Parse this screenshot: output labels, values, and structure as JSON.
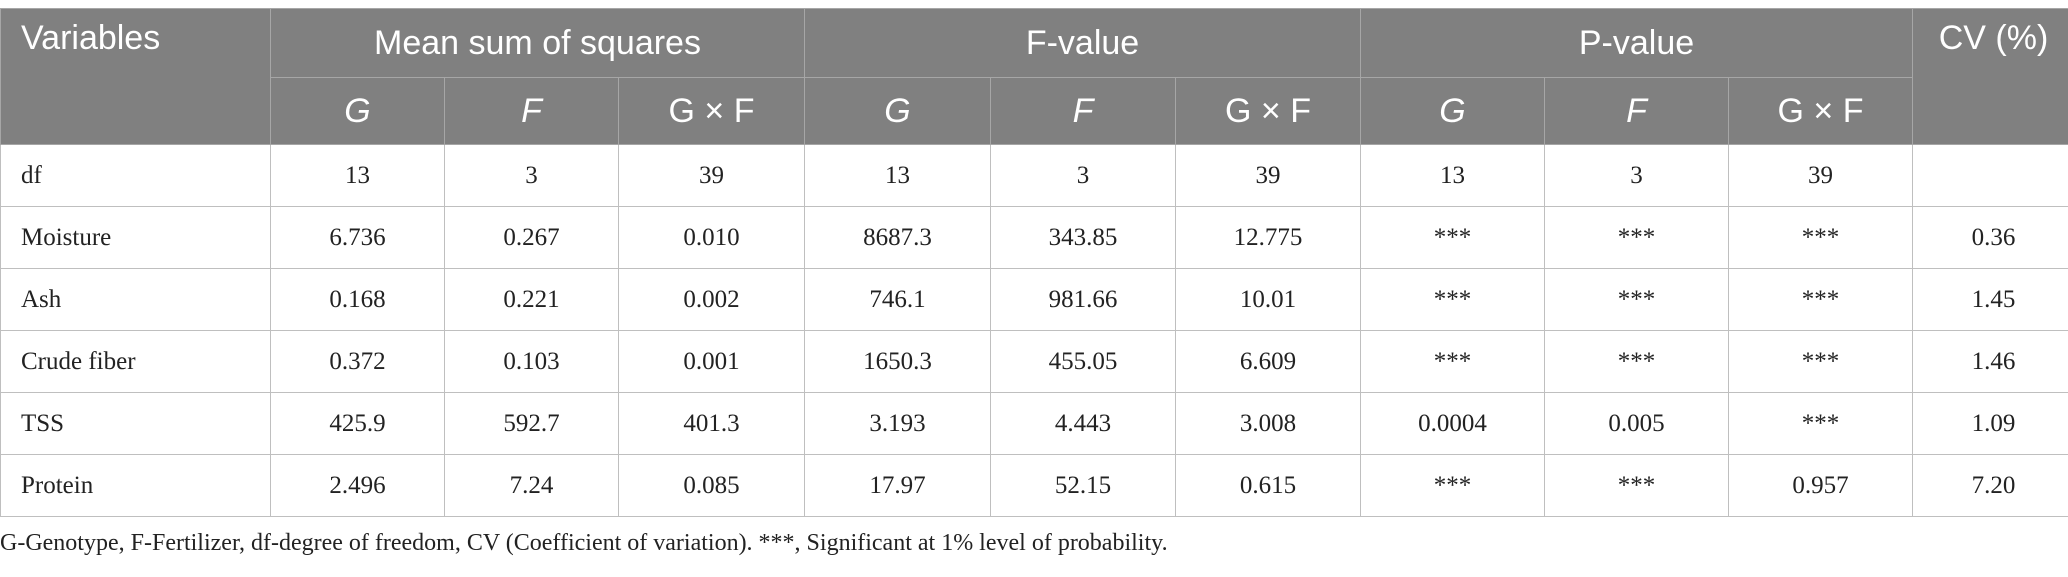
{
  "header": {
    "variables": "Variables",
    "groups": [
      "Mean sum of squares",
      "F-value",
      "P-value"
    ],
    "cv": "CV (%)",
    "sub": [
      "G",
      "F",
      "G × F",
      "G",
      "F",
      "G × F",
      "G",
      "F",
      "G × F"
    ]
  },
  "rows": [
    {
      "label": "df",
      "cells": [
        "13",
        "3",
        "39",
        "13",
        "3",
        "39",
        "13",
        "3",
        "39",
        ""
      ]
    },
    {
      "label": "Moisture",
      "cells": [
        "6.736",
        "0.267",
        "0.010",
        "8687.3",
        "343.85",
        "12.775",
        "***",
        "***",
        "***",
        "0.36"
      ]
    },
    {
      "label": "Ash",
      "cells": [
        "0.168",
        "0.221",
        "0.002",
        "746.1",
        "981.66",
        "10.01",
        "***",
        "***",
        "***",
        "1.45"
      ]
    },
    {
      "label": "Crude fiber",
      "cells": [
        "0.372",
        "0.103",
        "0.001",
        "1650.3",
        "455.05",
        "6.609",
        "***",
        "***",
        "***",
        "1.46"
      ]
    },
    {
      "label": "TSS",
      "cells": [
        "425.9",
        "592.7",
        "401.3",
        "3.193",
        "4.443",
        "3.008",
        "0.0004",
        "0.005",
        "***",
        "1.09"
      ]
    },
    {
      "label": "Protein",
      "cells": [
        "2.496",
        "7.24",
        "0.085",
        "17.97",
        "52.15",
        "0.615",
        "***",
        "***",
        "0.957",
        "7.20"
      ]
    }
  ],
  "footnote": "G-Genotype, F-Fertilizer, df-degree of freedom, CV (Coefficient of variation). ***, Significant at 1% level of probability."
}
